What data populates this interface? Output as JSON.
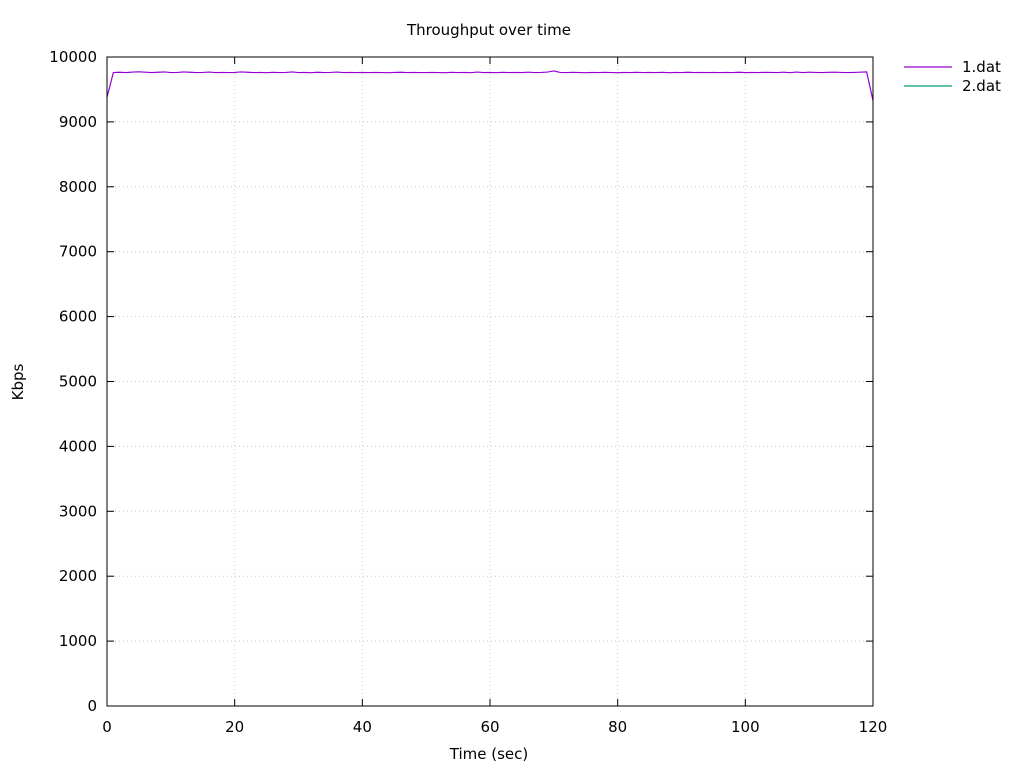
{
  "chart_data": {
    "type": "line",
    "title": "Throughput over time",
    "xlabel": "Time (sec)",
    "ylabel": "Kbps",
    "xlim": [
      0,
      120
    ],
    "ylim": [
      0,
      10000
    ],
    "x_ticks": [
      0,
      20,
      40,
      60,
      80,
      100,
      120
    ],
    "y_ticks": [
      0,
      1000,
      2000,
      3000,
      4000,
      5000,
      6000,
      7000,
      8000,
      9000,
      10000
    ],
    "grid": true,
    "legend_position": "top-right, outside plot",
    "series": [
      {
        "name": "1.dat",
        "color": "#9400d3",
        "x": [
          0,
          1,
          2,
          3,
          4,
          5,
          6,
          7,
          8,
          9,
          10,
          11,
          12,
          13,
          14,
          15,
          16,
          17,
          18,
          19,
          20,
          21,
          22,
          23,
          24,
          25,
          26,
          27,
          28,
          29,
          30,
          31,
          32,
          33,
          34,
          35,
          36,
          37,
          38,
          39,
          40,
          41,
          42,
          43,
          44,
          45,
          46,
          47,
          48,
          49,
          50,
          51,
          52,
          53,
          54,
          55,
          56,
          57,
          58,
          59,
          60,
          61,
          62,
          63,
          64,
          65,
          66,
          67,
          68,
          69,
          70,
          71,
          72,
          73,
          74,
          75,
          76,
          77,
          78,
          79,
          80,
          81,
          82,
          83,
          84,
          85,
          86,
          87,
          88,
          89,
          90,
          91,
          92,
          93,
          94,
          95,
          96,
          97,
          98,
          99,
          100,
          101,
          102,
          103,
          104,
          105,
          106,
          107,
          108,
          109,
          110,
          111,
          112,
          113,
          114,
          115,
          116,
          117,
          118,
          119,
          120
        ],
        "y": [
          9380,
          9760,
          9765,
          9760,
          9768,
          9772,
          9766,
          9760,
          9765,
          9770,
          9760,
          9762,
          9770,
          9765,
          9760,
          9762,
          9768,
          9760,
          9762,
          9760,
          9762,
          9770,
          9765,
          9760,
          9762,
          9758,
          9764,
          9760,
          9762,
          9770,
          9760,
          9762,
          9758,
          9765,
          9760,
          9762,
          9768,
          9760,
          9762,
          9760,
          9762,
          9760,
          9762,
          9760,
          9758,
          9762,
          9765,
          9760,
          9762,
          9760,
          9760,
          9762,
          9760,
          9758,
          9764,
          9760,
          9762,
          9758,
          9768,
          9760,
          9762,
          9758,
          9764,
          9760,
          9762,
          9760,
          9766,
          9760,
          9762,
          9768,
          9785,
          9762,
          9760,
          9764,
          9760,
          9758,
          9762,
          9760,
          9764,
          9760,
          9758,
          9762,
          9760,
          9764,
          9760,
          9762,
          9760,
          9764,
          9758,
          9762,
          9760,
          9765,
          9760,
          9762,
          9760,
          9762,
          9760,
          9762,
          9760,
          9765,
          9760,
          9762,
          9760,
          9764,
          9762,
          9760,
          9766,
          9758,
          9768,
          9760,
          9766,
          9762,
          9760,
          9764,
          9766,
          9762,
          9760,
          9762,
          9766,
          9770,
          9330
        ]
      },
      {
        "name": "2.dat",
        "color": "#009e73",
        "x": [],
        "y": []
      }
    ]
  }
}
